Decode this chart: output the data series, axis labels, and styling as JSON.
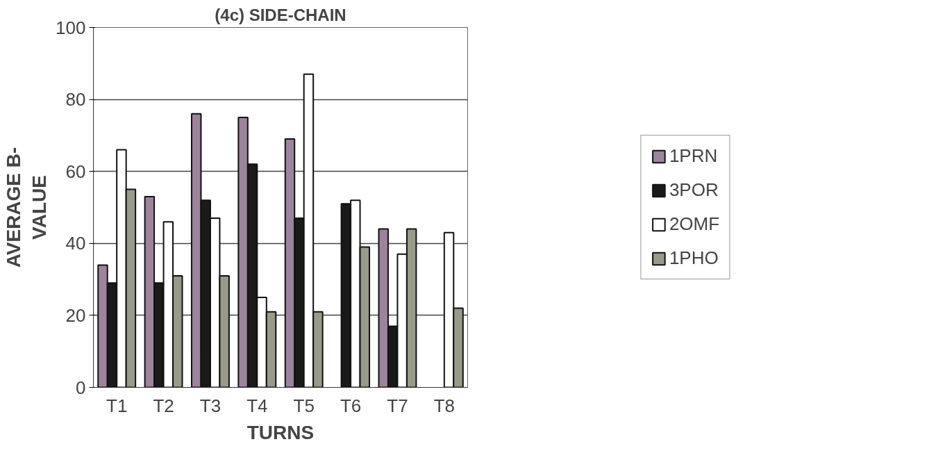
{
  "chart_data": {
    "type": "bar",
    "title": "(4c) SIDE-CHAIN",
    "xlabel": "TURNS",
    "ylabel": "AVERAGE B-\nVALUE",
    "categories": [
      "T1",
      "T2",
      "T3",
      "T4",
      "T5",
      "T6",
      "T7",
      "T8"
    ],
    "series": [
      {
        "name": "1PRN",
        "color": "#9c849c",
        "values": [
          34,
          53,
          76,
          75,
          69,
          null,
          44,
          null
        ]
      },
      {
        "name": "3POR",
        "color": "#1a1a1a",
        "values": [
          29,
          29,
          52,
          62,
          47,
          51,
          17,
          null
        ]
      },
      {
        "name": "2OMF",
        "color": "#ffffff",
        "values": [
          66,
          46,
          47,
          25,
          87,
          52,
          37,
          43
        ]
      },
      {
        "name": "1PHO",
        "color": "#9a9a8a",
        "values": [
          55,
          31,
          31,
          21,
          21,
          39,
          44,
          22
        ]
      }
    ],
    "ylim": [
      0,
      100
    ],
    "yticks": [
      0,
      20,
      40,
      60,
      80,
      100
    ],
    "grid": "y",
    "legend": "right"
  }
}
